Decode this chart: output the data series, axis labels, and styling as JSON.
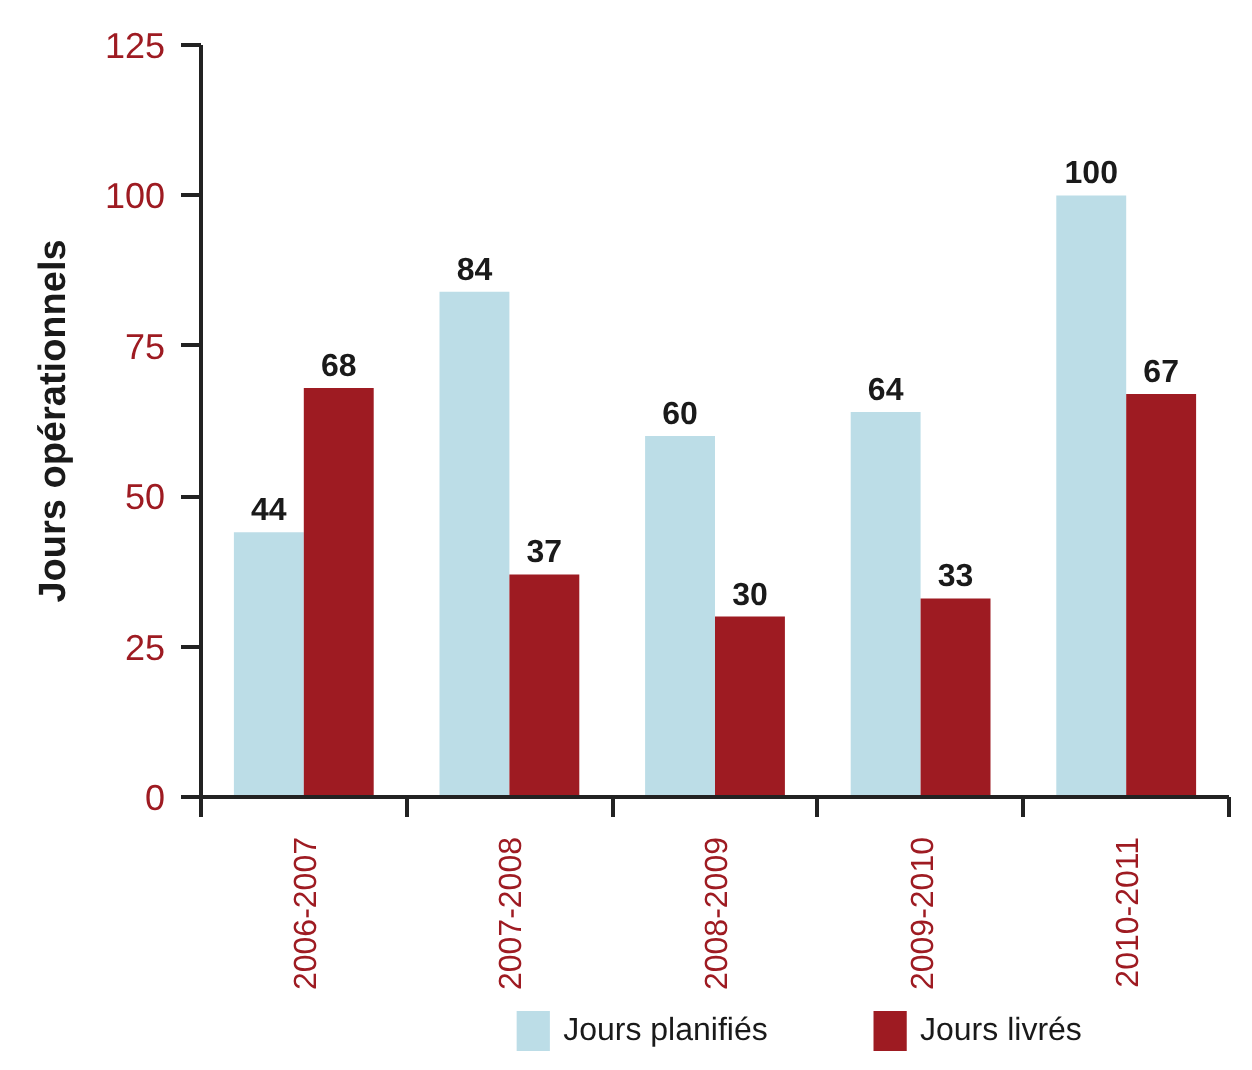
{
  "chart_data": {
    "type": "bar",
    "ylabel": "Jours opérationnels",
    "categories": [
      "2006-2007",
      "2007-2008",
      "2008-2009",
      "2009-2010",
      "2010-2011"
    ],
    "series": [
      {
        "name": "Jours planifiés",
        "color": "#bcdde7",
        "values": [
          44,
          84,
          60,
          64,
          100
        ]
      },
      {
        "name": "Jours livrés",
        "color": "#9e1b22",
        "values": [
          68,
          37,
          30,
          33,
          67
        ]
      }
    ],
    "ylim": [
      0,
      125
    ],
    "yticks": [
      0,
      25,
      50,
      75,
      100,
      125
    ],
    "data_labels": true,
    "grid": false,
    "legend": "bottom"
  }
}
